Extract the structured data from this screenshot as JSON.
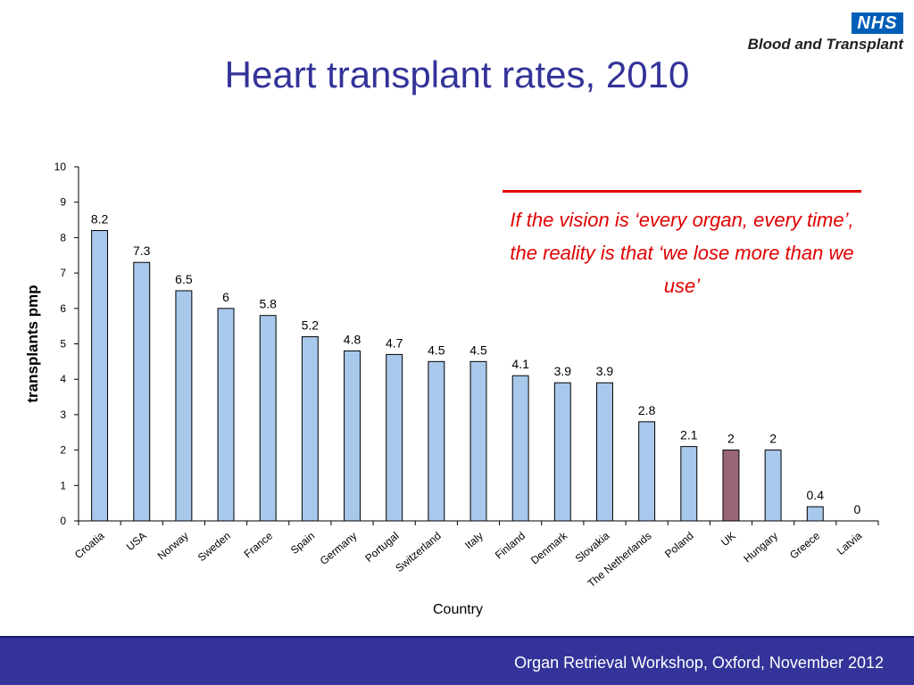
{
  "logo": {
    "badge": "NHS",
    "subtitle": "Blood and Transplant"
  },
  "slide": {
    "title": "Heart transplant rates, 2010"
  },
  "callout": {
    "text": "If the vision is ‘every organ, every time’, the reality is that ‘we lose more than we use’",
    "color": "#e00000"
  },
  "footer": {
    "text": "Organ Retrieval Workshop, Oxford, November 2012",
    "background": "#333399"
  },
  "colors": {
    "bar": "#a8c8ec",
    "bar_highlight": "#996677",
    "bar_outline": "#000000"
  },
  "chart_data": {
    "type": "bar",
    "title": "",
    "xlabel": "Country",
    "ylabel": "transplants pmp",
    "ylim": [
      0,
      10
    ],
    "yticks": [
      0,
      1,
      2,
      3,
      4,
      5,
      6,
      7,
      8,
      9,
      10
    ],
    "grid": false,
    "legend": "none",
    "categories": [
      "Croatia",
      "USA",
      "Norway",
      "Sweden",
      "France",
      "Spain",
      "Germany",
      "Portugal",
      "Switzerland",
      "Italy",
      "Finland",
      "Denmark",
      "Slovakia",
      "The Netherlands",
      "Poland",
      "UK",
      "Hungary",
      "Greece",
      "Latvia"
    ],
    "values": [
      8.2,
      7.3,
      6.5,
      6,
      5.8,
      5.2,
      4.8,
      4.7,
      4.5,
      4.5,
      4.1,
      3.9,
      3.9,
      2.8,
      2.1,
      2,
      2,
      0.4,
      0
    ],
    "data_labels": [
      "8.2",
      "7.3",
      "6.5",
      "6",
      "5.8",
      "5.2",
      "4.8",
      "4.7",
      "4.5",
      "4.5",
      "4.1",
      "3.9",
      "3.9",
      "2.8",
      "2.1",
      "2",
      "2",
      "0.4",
      "0"
    ],
    "highlight": "UK"
  }
}
